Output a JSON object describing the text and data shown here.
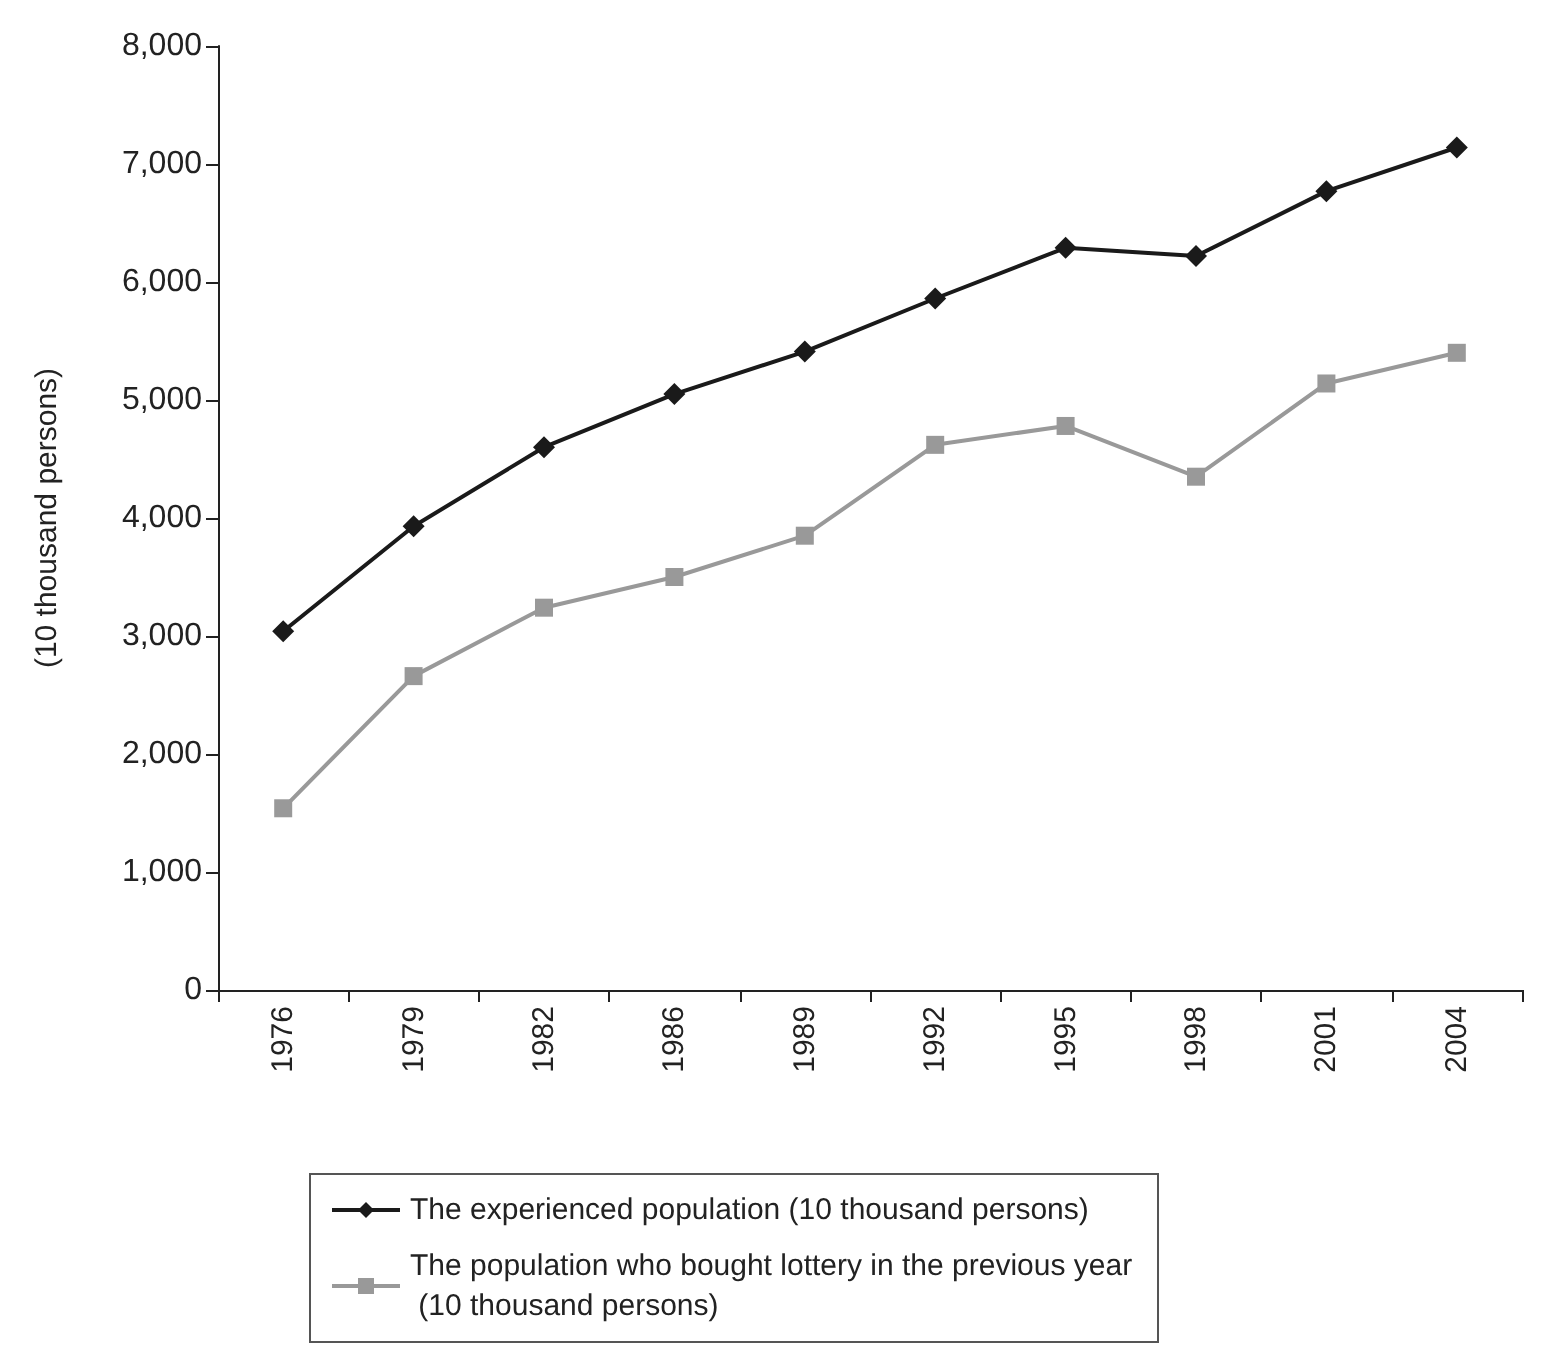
{
  "chart_data": {
    "type": "line",
    "ylabel": "(10 thousand persons)",
    "categories": [
      "1976",
      "1979",
      "1982",
      "1986",
      "1989",
      "1992",
      "1995",
      "1998",
      "2001",
      "2004"
    ],
    "series": [
      {
        "name": "The experienced population (10 thousand persons)",
        "color": "#1a1a1a",
        "marker": "diamond",
        "values": [
          3040,
          3930,
          4600,
          5050,
          5410,
          5860,
          6290,
          6220,
          6770,
          7140
        ]
      },
      {
        "name": "The population who bought lottery in the previous year (10 thousand persons)",
        "color": "#999999",
        "marker": "square",
        "values": [
          1540,
          2660,
          3240,
          3500,
          3850,
          4620,
          4780,
          4350,
          5140,
          5400
        ]
      }
    ],
    "ylim": [
      0,
      8000
    ],
    "yticks": [
      0,
      {
        "value": 1000,
        "label": "1,000"
      },
      {
        "value": 2000,
        "label": "2,000"
      },
      {
        "value": 3000,
        "label": "3,000"
      },
      {
        "value": 4000,
        "label": "4,000"
      },
      {
        "value": 5000,
        "label": "5,000"
      },
      {
        "value": 6000,
        "label": "6,000"
      },
      {
        "value": 7000,
        "label": "7,000"
      },
      {
        "value": 8000,
        "label": "8,000"
      }
    ],
    "grid": false,
    "legend": "bottom",
    "line_style": "solid"
  }
}
